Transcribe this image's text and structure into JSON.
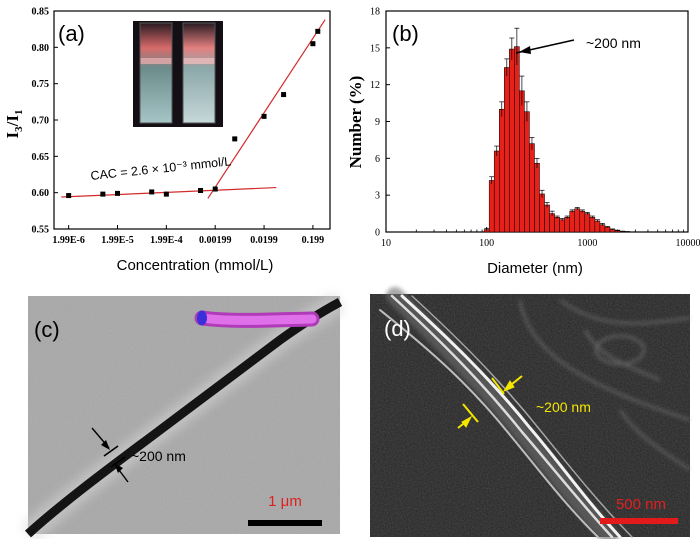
{
  "panels": {
    "a": "(a)",
    "b": "(b)",
    "c": "(c)",
    "d": "(d)"
  },
  "chart_data": [
    {
      "type": "scatter",
      "panel": "(a)",
      "title": "",
      "xlabel": "Concentration (mmol/L)",
      "ylabel_main": "I",
      "ylabel_sub1": "3",
      "ylabel_mid": "/I",
      "ylabel_sub2": "1",
      "ylim": [
        0.55,
        0.85
      ],
      "yticks": [
        "0.55",
        "0.60",
        "0.65",
        "0.70",
        "0.75",
        "0.80",
        "0.85"
      ],
      "ytick_values": [
        0.55,
        0.6,
        0.65,
        0.7,
        0.75,
        0.8,
        0.85
      ],
      "xticks": [
        "1.99E-6",
        "1.99E-5",
        "1.99E-4",
        "0.00199",
        "0.0199",
        "0.199"
      ],
      "xtick_log_values": [
        -5.7,
        -4.7,
        -3.7,
        -2.7,
        -1.7,
        -0.7
      ],
      "x_log_range": [
        -6.0,
        -0.35
      ],
      "points": [
        {
          "logx": -5.7,
          "y": 0.596
        },
        {
          "logx": -5.0,
          "y": 0.598
        },
        {
          "logx": -4.7,
          "y": 0.599
        },
        {
          "logx": -4.0,
          "y": 0.601
        },
        {
          "logx": -3.7,
          "y": 0.598
        },
        {
          "logx": -3.0,
          "y": 0.603
        },
        {
          "logx": -2.7,
          "y": 0.605
        },
        {
          "logx": -2.3,
          "y": 0.674
        },
        {
          "logx": -1.7,
          "y": 0.705
        },
        {
          "logx": -1.3,
          "y": 0.735
        },
        {
          "logx": -0.7,
          "y": 0.805
        },
        {
          "logx": -0.6,
          "y": 0.822
        }
      ],
      "fit_lines": [
        {
          "logx": [
            -5.85,
            -1.45
          ],
          "y": [
            0.594,
            0.607
          ]
        },
        {
          "logx": [
            -2.85,
            -0.45
          ],
          "y": [
            0.592,
            0.838
          ]
        }
      ],
      "annotation": "CAC = 2.6 × 10⁻³ mmol/L",
      "inset": "photo of two cuvettes"
    },
    {
      "type": "bar",
      "panel": "(b)",
      "xlabel": "Diameter (nm)",
      "ylabel": "Number (%)",
      "ylim": [
        0,
        18
      ],
      "yticks": [
        "0",
        "3",
        "6",
        "9",
        "12",
        "15",
        "18"
      ],
      "ytick_values": [
        0,
        3,
        6,
        9,
        12,
        15,
        18
      ],
      "xscale": "log",
      "x_log_range": [
        1,
        4
      ],
      "xticks": [
        "10",
        "100",
        "1000",
        "10000"
      ],
      "xtick_log_values": [
        1,
        2,
        3,
        4
      ],
      "bins_logd": [
        2.0,
        2.05,
        2.1,
        2.15,
        2.2,
        2.25,
        2.3,
        2.35,
        2.4,
        2.45,
        2.5,
        2.55,
        2.6,
        2.65,
        2.7,
        2.75,
        2.8,
        2.85,
        2.9,
        2.95,
        3.0,
        3.05,
        3.1,
        3.15,
        3.2,
        3.25,
        3.3,
        3.35,
        3.4
      ],
      "values": [
        0.2,
        4.2,
        6.6,
        10.0,
        13.4,
        14.9,
        15.1,
        11.5,
        9.8,
        7.2,
        5.6,
        3.1,
        2.2,
        1.5,
        1.2,
        1.0,
        1.2,
        1.7,
        1.9,
        1.7,
        1.5,
        1.2,
        0.9,
        0.6,
        0.4,
        0.2,
        0.1,
        0.05,
        0.02
      ],
      "errors": [
        0.1,
        0.3,
        0.4,
        0.6,
        0.7,
        0.9,
        1.5,
        1.2,
        0.8,
        0.5,
        0.4,
        0.3,
        0.2,
        0.2,
        0.1,
        0.1,
        0.1,
        0.1,
        0.1,
        0.1,
        0.1,
        0.1,
        0.1,
        0.1,
        0.05,
        0.05,
        0.05,
        0.02,
        0.02
      ],
      "annotation": "~200 nm"
    }
  ],
  "images": {
    "c": {
      "measure": "~200 nm",
      "scalebar": "1 μm"
    },
    "d": {
      "measure": "~200 nm",
      "scalebar": "500 nm"
    }
  },
  "colors": {
    "bar": "#e8201a",
    "fit_line": "#d42a2a",
    "scalebar_text": "#e02020",
    "yellow": "#f5e600"
  }
}
